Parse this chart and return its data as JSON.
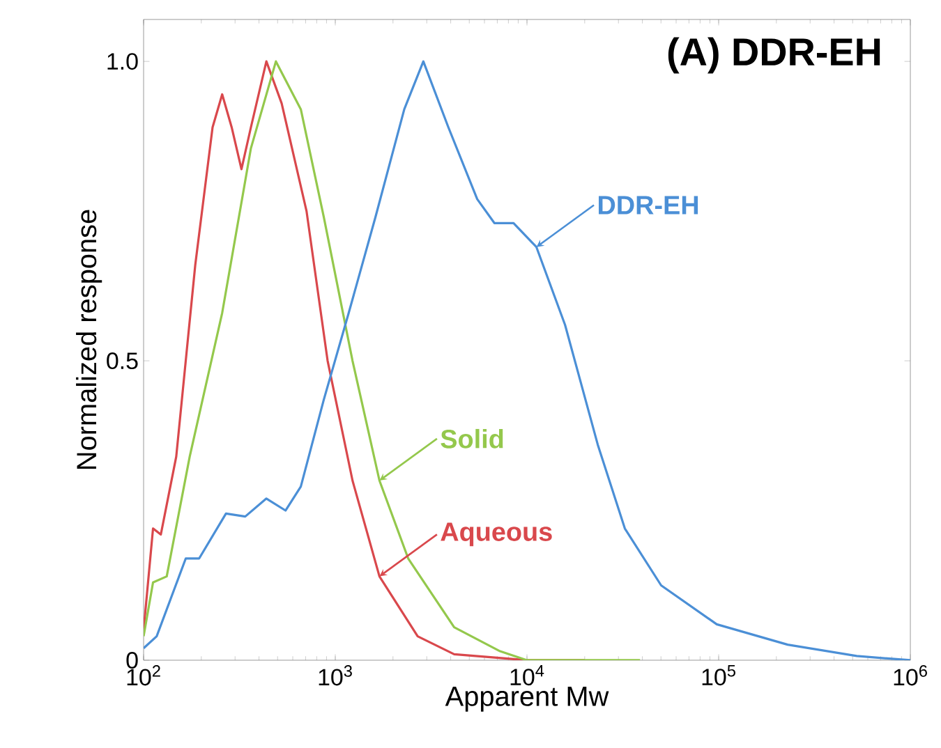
{
  "chart_data": {
    "type": "line",
    "title": "(A) DDR-EH",
    "xlabel": "Apparent Mw",
    "ylabel": "Normalized response",
    "log": "x",
    "xlim": [
      100,
      1000000
    ],
    "ylim": [
      0,
      1.07
    ],
    "xticks": [
      {
        "value": 100,
        "label": "10$^{2}$"
      },
      {
        "value": 1000,
        "label": "10$^{3}$"
      },
      {
        "value": 10000,
        "label": "10$^{4}$"
      },
      {
        "value": 100000,
        "label": "10$^{5}$"
      },
      {
        "value": 1000000,
        "label": "10$^{6}$"
      }
    ],
    "yticks": [
      0,
      0.5,
      {
        "value": 1.0,
        "label": "1.0"
      }
    ],
    "grid": false,
    "legend": false,
    "marker": "none",
    "line_style": "solid",
    "series": [
      {
        "name": "Aqueous",
        "color": "#d9484c",
        "x": [
          100,
          112,
          123,
          148,
          186,
          229,
          257,
          288,
          324,
          363,
          437,
          525,
          708,
          912,
          1230,
          1700,
          2690,
          4170,
          10000,
          20000
        ],
        "values": [
          0.05,
          0.22,
          0.21,
          0.34,
          0.66,
          0.89,
          0.945,
          0.89,
          0.82,
          0.89,
          1.0,
          0.93,
          0.75,
          0.5,
          0.3,
          0.14,
          0.04,
          0.01,
          0.0,
          0.0
        ]
      },
      {
        "name": "Solid",
        "color": "#94c84c",
        "x": [
          100,
          112,
          132,
          174,
          257,
          363,
          490,
          661,
          871,
          1230,
          1700,
          2400,
          4170,
          7240,
          10000,
          38900
        ],
        "values": [
          0.04,
          0.13,
          0.14,
          0.34,
          0.58,
          0.855,
          1.0,
          0.92,
          0.74,
          0.5,
          0.3,
          0.17,
          0.055,
          0.015,
          0.0,
          0.0
        ]
      },
      {
        "name": "DDR-EH",
        "color": "#4b8fd6",
        "x": [
          100,
          117,
          166,
          195,
          269,
          339,
          437,
          550,
          661,
          871,
          1175,
          1620,
          2290,
          2880,
          3890,
          5500,
          6760,
          8510,
          11200,
          15800,
          23400,
          32400,
          50100,
          97700,
          229000,
          525000,
          1000000
        ],
        "values": [
          0.02,
          0.04,
          0.17,
          0.17,
          0.245,
          0.24,
          0.27,
          0.25,
          0.29,
          0.435,
          0.58,
          0.74,
          0.92,
          1.0,
          0.89,
          0.77,
          0.73,
          0.73,
          0.69,
          0.56,
          0.36,
          0.22,
          0.125,
          0.06,
          0.026,
          0.007,
          0.0
        ]
      }
    ]
  }
}
